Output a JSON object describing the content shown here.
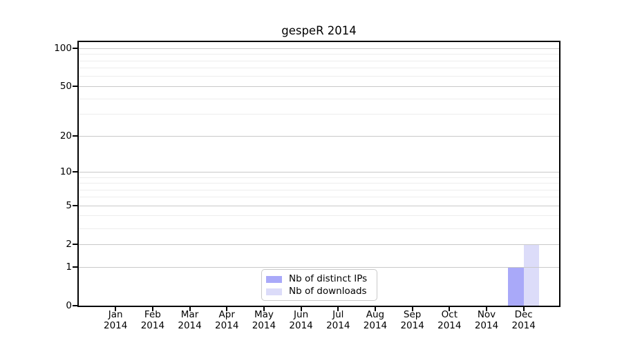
{
  "chart_data": {
    "type": "bar",
    "title": "gespeR 2014",
    "categories": [
      "Jan",
      "Feb",
      "Mar",
      "Apr",
      "May",
      "Jun",
      "Jul",
      "Aug",
      "Sep",
      "Oct",
      "Nov",
      "Dec"
    ],
    "category_year": "2014",
    "series": [
      {
        "name": "Nb of distinct IPs",
        "color": "#a9a9f9",
        "values": [
          0,
          0,
          0,
          0,
          0,
          0,
          0,
          0,
          0,
          0,
          0,
          1
        ]
      },
      {
        "name": "Nb of downloads",
        "color": "#dcdcf9",
        "values": [
          0,
          0,
          0,
          0,
          0,
          0,
          0,
          0,
          0,
          0,
          0,
          2
        ]
      }
    ],
    "xlabel": "",
    "ylabel": "",
    "y_axis": {
      "scale": "log1p",
      "major_ticks": [
        0,
        1,
        2,
        5,
        10,
        20,
        50,
        100
      ],
      "minor_gridlines": [
        3,
        4,
        6,
        7,
        8,
        9,
        30,
        40,
        60,
        70,
        80,
        90
      ],
      "top_value": 112
    },
    "legend": {
      "entries": [
        "Nb of distinct IPs",
        "Nb of downloads"
      ],
      "position": "lower center"
    },
    "grid": true,
    "colors": {
      "grid_major": "#c8c8c8",
      "grid_minor": "#ededed",
      "axis": "#000000",
      "legend_border": "#c9c9c9",
      "background": "#ffffff"
    }
  }
}
